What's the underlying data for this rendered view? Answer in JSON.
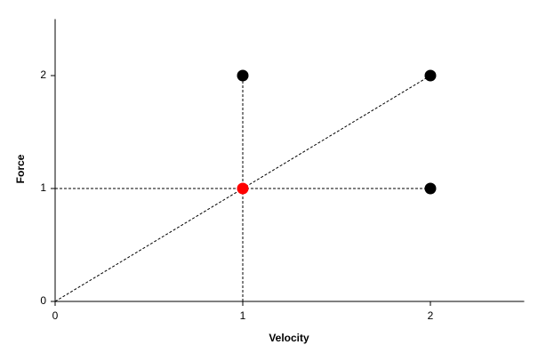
{
  "chart_data": {
    "type": "scatter",
    "xlabel": "Velocity",
    "ylabel": "Force",
    "x": [
      1,
      2,
      2,
      1
    ],
    "y": [
      2,
      2,
      1,
      1
    ],
    "colors": [
      "#000000",
      "#000000",
      "#000000",
      "#ff0000"
    ],
    "lines": [
      {
        "x": [
          0,
          2
        ],
        "y": [
          0,
          2
        ]
      },
      {
        "x": [
          0,
          2
        ],
        "y": [
          1,
          1
        ]
      },
      {
        "x": [
          1,
          1
        ],
        "y": [
          0,
          2
        ]
      }
    ],
    "line_color": "#000000",
    "xlim": [
      0,
      2.5
    ],
    "ylim": [
      0,
      2.5
    ],
    "xticks": [
      0,
      1,
      2
    ],
    "yticks": [
      0,
      1,
      2
    ]
  }
}
